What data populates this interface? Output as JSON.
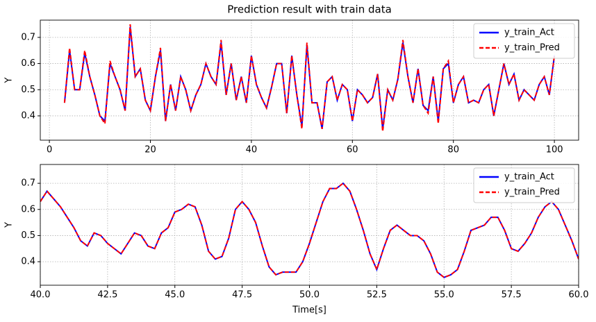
{
  "chart_data": [
    {
      "type": "line",
      "title": "Prediction result with train data",
      "ylabel": "Y",
      "xlim": [
        -1.8,
        104.8
      ],
      "ylim": [
        0.307,
        0.766
      ],
      "xticks": [
        0,
        20,
        40,
        60,
        80,
        100
      ],
      "yticks": [
        0.4,
        0.5,
        0.6,
        0.7
      ],
      "grid": true,
      "legend": "upper right",
      "x": [
        3,
        4,
        5,
        6,
        7,
        8,
        9,
        10,
        11,
        12,
        13,
        14,
        15,
        16,
        17,
        18,
        19,
        20,
        21,
        22,
        23,
        24,
        25,
        26,
        27,
        28,
        29,
        30,
        31,
        32,
        33,
        34,
        35,
        36,
        37,
        38,
        39,
        40,
        41,
        42,
        43,
        44,
        45,
        46,
        47,
        48,
        49,
        50,
        51,
        52,
        53,
        54,
        55,
        56,
        57,
        58,
        59,
        60,
        61,
        62,
        63,
        64,
        65,
        66,
        67,
        68,
        69,
        70,
        71,
        72,
        73,
        74,
        75,
        76,
        77,
        78,
        79,
        80,
        81,
        82,
        83,
        84,
        85,
        86,
        87,
        88,
        89,
        90,
        91,
        92,
        93,
        94,
        95,
        96,
        97,
        98,
        99,
        100
      ],
      "series": [
        {
          "name": "y_train_Act",
          "color": "#0000ff",
          "dash": false,
          "values": [
            0.45,
            0.65,
            0.5,
            0.5,
            0.64,
            0.55,
            0.48,
            0.4,
            0.38,
            0.6,
            0.55,
            0.5,
            0.42,
            0.74,
            0.55,
            0.58,
            0.46,
            0.42,
            0.55,
            0.65,
            0.38,
            0.52,
            0.42,
            0.55,
            0.5,
            0.42,
            0.48,
            0.52,
            0.6,
            0.55,
            0.52,
            0.68,
            0.48,
            0.6,
            0.46,
            0.55,
            0.45,
            0.63,
            0.52,
            0.47,
            0.43,
            0.51,
            0.6,
            0.6,
            0.41,
            0.63,
            0.48,
            0.36,
            0.67,
            0.45,
            0.45,
            0.35,
            0.53,
            0.55,
            0.46,
            0.52,
            0.5,
            0.38,
            0.5,
            0.48,
            0.45,
            0.47,
            0.56,
            0.35,
            0.5,
            0.46,
            0.54,
            0.68,
            0.55,
            0.45,
            0.58,
            0.44,
            0.42,
            0.55,
            0.38,
            0.58,
            0.6,
            0.45,
            0.52,
            0.55,
            0.45,
            0.46,
            0.45,
            0.5,
            0.52,
            0.4,
            0.5,
            0.6,
            0.52,
            0.56,
            0.46,
            0.5,
            0.48,
            0.46,
            0.52,
            0.55,
            0.48,
            0.63
          ]
        },
        {
          "name": "y_train_Pred",
          "color": "#ff0000",
          "dash": true,
          "values": [
            0.45,
            0.66,
            0.5,
            0.5,
            0.65,
            0.55,
            0.48,
            0.4,
            0.37,
            0.61,
            0.55,
            0.5,
            0.42,
            0.75,
            0.55,
            0.58,
            0.46,
            0.42,
            0.55,
            0.66,
            0.38,
            0.52,
            0.42,
            0.55,
            0.5,
            0.42,
            0.48,
            0.52,
            0.6,
            0.55,
            0.52,
            0.69,
            0.48,
            0.6,
            0.46,
            0.55,
            0.45,
            0.63,
            0.52,
            0.47,
            0.43,
            0.51,
            0.6,
            0.6,
            0.41,
            0.63,
            0.48,
            0.35,
            0.68,
            0.45,
            0.45,
            0.35,
            0.53,
            0.55,
            0.46,
            0.52,
            0.5,
            0.38,
            0.5,
            0.48,
            0.45,
            0.47,
            0.56,
            0.34,
            0.5,
            0.46,
            0.54,
            0.69,
            0.55,
            0.45,
            0.58,
            0.44,
            0.41,
            0.55,
            0.37,
            0.58,
            0.61,
            0.45,
            0.52,
            0.55,
            0.45,
            0.46,
            0.45,
            0.5,
            0.52,
            0.4,
            0.5,
            0.6,
            0.52,
            0.56,
            0.46,
            0.5,
            0.48,
            0.46,
            0.52,
            0.55,
            0.48,
            0.63
          ]
        }
      ]
    },
    {
      "type": "line",
      "xlabel": "Time[s]",
      "ylabel": "Y",
      "xlim": [
        40,
        60
      ],
      "ylim": [
        0.31,
        0.772
      ],
      "xticks": [
        {
          "value": 40,
          "label": "40.0"
        },
        {
          "value": 42.5,
          "label": "42.5"
        },
        {
          "value": 45,
          "label": "45.0"
        },
        {
          "value": 47.5,
          "label": "47.5"
        },
        {
          "value": 50,
          "label": "50.0"
        },
        {
          "value": 52.5,
          "label": "52.5"
        },
        {
          "value": 55,
          "label": "55.0"
        },
        {
          "value": 57.5,
          "label": "57.5"
        },
        {
          "value": 60,
          "label": "60.0"
        }
      ],
      "yticks": [
        0.4,
        0.5,
        0.6,
        0.7
      ],
      "grid": true,
      "legend": "upper right",
      "x": [
        40,
        40.25,
        40.5,
        40.75,
        41,
        41.25,
        41.5,
        41.75,
        42,
        42.25,
        42.5,
        42.75,
        43,
        43.25,
        43.5,
        43.75,
        44,
        44.25,
        44.5,
        44.75,
        45,
        45.25,
        45.5,
        45.75,
        46,
        46.25,
        46.5,
        46.75,
        47,
        47.25,
        47.5,
        47.75,
        48,
        48.25,
        48.5,
        48.75,
        49,
        49.25,
        49.5,
        49.75,
        50,
        50.25,
        50.5,
        50.75,
        51,
        51.25,
        51.5,
        51.75,
        52,
        52.25,
        52.5,
        52.75,
        53,
        53.25,
        53.5,
        53.75,
        54,
        54.25,
        54.5,
        54.75,
        55,
        55.25,
        55.5,
        55.75,
        56,
        56.25,
        56.5,
        56.75,
        57,
        57.25,
        57.5,
        57.75,
        58,
        58.25,
        58.5,
        58.75,
        59,
        59.25,
        59.5,
        59.75,
        60
      ],
      "series": [
        {
          "name": "y_train_Act",
          "color": "#0000ff",
          "dash": false,
          "values": [
            0.63,
            0.67,
            0.64,
            0.61,
            0.57,
            0.53,
            0.48,
            0.46,
            0.51,
            0.5,
            0.47,
            0.45,
            0.43,
            0.47,
            0.51,
            0.5,
            0.46,
            0.45,
            0.51,
            0.53,
            0.59,
            0.6,
            0.62,
            0.61,
            0.54,
            0.44,
            0.41,
            0.42,
            0.49,
            0.6,
            0.63,
            0.6,
            0.55,
            0.46,
            0.38,
            0.35,
            0.36,
            0.36,
            0.36,
            0.4,
            0.47,
            0.55,
            0.63,
            0.68,
            0.68,
            0.7,
            0.67,
            0.6,
            0.52,
            0.43,
            0.37,
            0.45,
            0.52,
            0.54,
            0.52,
            0.5,
            0.5,
            0.48,
            0.43,
            0.36,
            0.34,
            0.35,
            0.37,
            0.44,
            0.52,
            0.53,
            0.54,
            0.57,
            0.57,
            0.52,
            0.45,
            0.44,
            0.47,
            0.51,
            0.57,
            0.61,
            0.63,
            0.6,
            0.54,
            0.48,
            0.41
          ]
        },
        {
          "name": "y_train_Pred",
          "color": "#ff0000",
          "dash": true,
          "values": [
            0.63,
            0.67,
            0.64,
            0.61,
            0.57,
            0.53,
            0.48,
            0.46,
            0.51,
            0.5,
            0.47,
            0.45,
            0.43,
            0.47,
            0.51,
            0.5,
            0.46,
            0.45,
            0.51,
            0.53,
            0.59,
            0.6,
            0.62,
            0.61,
            0.54,
            0.44,
            0.41,
            0.42,
            0.49,
            0.6,
            0.63,
            0.6,
            0.55,
            0.46,
            0.38,
            0.35,
            0.36,
            0.36,
            0.36,
            0.4,
            0.47,
            0.55,
            0.63,
            0.68,
            0.68,
            0.7,
            0.67,
            0.6,
            0.52,
            0.43,
            0.37,
            0.45,
            0.52,
            0.54,
            0.52,
            0.5,
            0.5,
            0.48,
            0.43,
            0.36,
            0.34,
            0.35,
            0.37,
            0.44,
            0.52,
            0.53,
            0.54,
            0.57,
            0.57,
            0.52,
            0.45,
            0.44,
            0.47,
            0.51,
            0.57,
            0.61,
            0.63,
            0.6,
            0.54,
            0.48,
            0.41
          ]
        }
      ]
    }
  ]
}
